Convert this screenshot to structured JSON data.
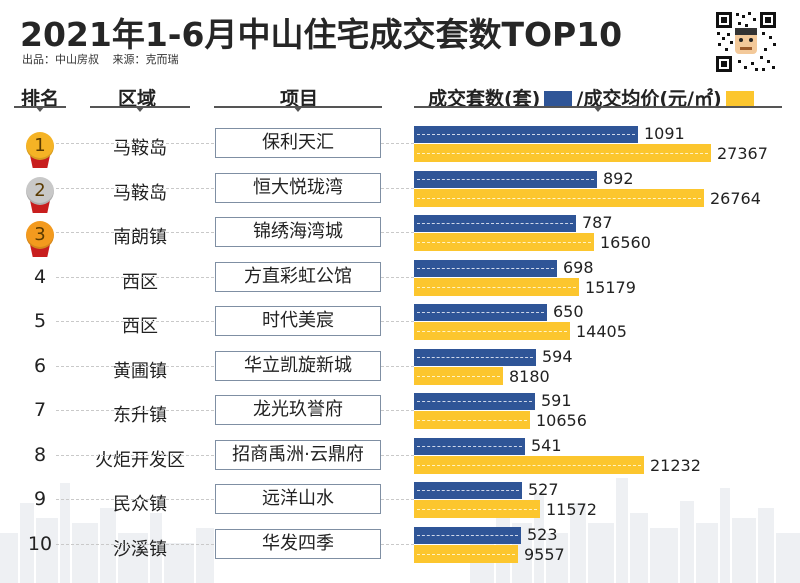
{
  "header": {
    "title": "2021年1-6月中山住宅成交套数TOP10",
    "publisher": "出品：中山房叔",
    "source": "来源：克而瑞"
  },
  "columns": {
    "rank": "排名",
    "district": "区域",
    "project": "项目",
    "series_a_label": "成交套数(套)",
    "series_b_label": "/成交均价(元/㎡)"
  },
  "colors": {
    "units_bar": "#2f5597",
    "price_bar": "#fcc62e",
    "gold": "#f5b325",
    "silver": "#c8c8c8",
    "bronze": "#f39a1e"
  },
  "chart_data": {
    "type": "bar",
    "orientation": "horizontal",
    "title": "2021年1-6月中山住宅成交套数TOP10",
    "categories": [
      "保利天汇",
      "恒大悦珑湾",
      "锦绣海湾城",
      "方直彩虹公馆",
      "时代美宸",
      "华立凯旋新城",
      "龙光玖誉府",
      "招商禹洲·云鼎府",
      "远洋山水",
      "华发四季"
    ],
    "series": [
      {
        "name": "成交套数(套)",
        "values": [
          1091,
          892,
          787,
          698,
          650,
          594,
          591,
          541,
          527,
          523
        ]
      },
      {
        "name": "成交均价(元/㎡)",
        "values": [
          27367,
          26764,
          16560,
          15179,
          14405,
          8180,
          10656,
          21232,
          11572,
          9557
        ]
      }
    ],
    "legend": "top",
    "grid": false
  },
  "rows": [
    {
      "rank": "1",
      "medal": "gold",
      "district": "马鞍岛",
      "project": "保利天汇"
    },
    {
      "rank": "2",
      "medal": "silver",
      "district": "马鞍岛",
      "project": "恒大悦珑湾"
    },
    {
      "rank": "3",
      "medal": "bronze",
      "district": "南朗镇",
      "project": "锦绣海湾城"
    },
    {
      "rank": "4",
      "medal": "",
      "district": "西区",
      "project": "方直彩虹公馆"
    },
    {
      "rank": "5",
      "medal": "",
      "district": "西区",
      "project": "时代美宸"
    },
    {
      "rank": "6",
      "medal": "",
      "district": "黄圃镇",
      "project": "华立凯旋新城"
    },
    {
      "rank": "7",
      "medal": "",
      "district": "东升镇",
      "project": "龙光玖誉府"
    },
    {
      "rank": "8",
      "medal": "",
      "district": "火炬开发区",
      "project": "招商禹洲·云鼎府"
    },
    {
      "rank": "9",
      "medal": "",
      "district": "民众镇",
      "project": "远洋山水"
    },
    {
      "rank": "10",
      "medal": "",
      "district": "沙溪镇",
      "project": "华发四季"
    }
  ]
}
